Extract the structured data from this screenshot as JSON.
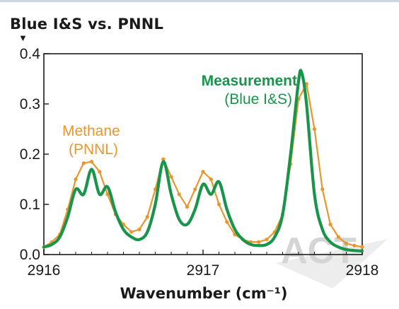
{
  "page": {
    "title": "Blue I&S vs. PNNL",
    "title_marker": "▼",
    "watermark": "ACT"
  },
  "chart_data": {
    "type": "line",
    "title": "Blue I&S vs. PNNL",
    "xlabel": "Wavenumber (cm⁻¹)",
    "ylabel": "",
    "xlim": [
      2916,
      2918
    ],
    "ylim": [
      0,
      0.4
    ],
    "x_ticks": [
      2916,
      2917,
      2918
    ],
    "x_tick_labels": [
      "2916",
      "2917",
      "2918"
    ],
    "y_ticks": [
      0.0,
      0.1,
      0.2,
      0.3,
      0.4
    ],
    "y_tick_labels": [
      "0.0",
      "0.1",
      "0.2",
      "0.3",
      "0.4"
    ],
    "grid": false,
    "annotations": [
      {
        "text": "Methane",
        "series": "Methane (PNNL)",
        "color": "#e8962e",
        "bold": false
      },
      {
        "text": "(PNNL)",
        "series": "Methane (PNNL)",
        "color": "#e8962e",
        "bold": false
      },
      {
        "text": "Measurement",
        "series": "Measurement (Blue I&S)",
        "color": "#18954b",
        "bold": true
      },
      {
        "text": "(Blue I&S)",
        "series": "Measurement (Blue I&S)",
        "color": "#18954b",
        "bold": false
      }
    ],
    "series": [
      {
        "name": "Methane (PNNL)",
        "color": "#e8962e",
        "markers": true,
        "x": [
          2916.0,
          2916.05,
          2916.1,
          2916.15,
          2916.2,
          2916.25,
          2916.3,
          2916.35,
          2916.4,
          2916.45,
          2916.5,
          2916.55,
          2916.6,
          2916.65,
          2916.7,
          2916.75,
          2916.8,
          2916.85,
          2916.9,
          2916.95,
          2917.0,
          2917.05,
          2917.1,
          2917.15,
          2917.2,
          2917.25,
          2917.3,
          2917.35,
          2917.4,
          2917.45,
          2917.5,
          2917.55,
          2917.6,
          2917.65,
          2917.7,
          2917.75,
          2917.8,
          2917.85,
          2917.9,
          2917.95,
          2918.0
        ],
        "y": [
          0.015,
          0.025,
          0.04,
          0.09,
          0.15,
          0.182,
          0.185,
          0.165,
          0.12,
          0.08,
          0.06,
          0.045,
          0.05,
          0.075,
          0.13,
          0.19,
          0.155,
          0.12,
          0.095,
          0.13,
          0.165,
          0.15,
          0.1,
          0.065,
          0.04,
          0.03,
          0.025,
          0.025,
          0.03,
          0.045,
          0.08,
          0.18,
          0.31,
          0.34,
          0.25,
          0.13,
          0.06,
          0.035,
          0.022,
          0.018,
          0.015
        ]
      },
      {
        "name": "Measurement (Blue I&S)",
        "color": "#18954b",
        "markers": false,
        "x": [
          2916.0,
          2916.05,
          2916.1,
          2916.15,
          2916.2,
          2916.25,
          2916.3,
          2916.35,
          2916.4,
          2916.45,
          2916.5,
          2916.55,
          2916.6,
          2916.65,
          2916.7,
          2916.75,
          2916.8,
          2916.85,
          2916.9,
          2916.95,
          2917.0,
          2917.05,
          2917.1,
          2917.15,
          2917.2,
          2917.25,
          2917.3,
          2917.35,
          2917.4,
          2917.45,
          2917.5,
          2917.55,
          2917.6,
          2917.62,
          2917.65,
          2917.7,
          2917.75,
          2917.8,
          2917.85,
          2917.9,
          2917.95,
          2918.0
        ],
        "y": [
          0.015,
          0.02,
          0.035,
          0.075,
          0.13,
          0.12,
          0.17,
          0.12,
          0.135,
          0.085,
          0.05,
          0.035,
          0.03,
          0.045,
          0.1,
          0.185,
          0.12,
          0.07,
          0.06,
          0.09,
          0.14,
          0.12,
          0.145,
          0.09,
          0.05,
          0.03,
          0.02,
          0.018,
          0.02,
          0.035,
          0.08,
          0.2,
          0.345,
          0.362,
          0.3,
          0.12,
          0.05,
          0.025,
          0.015,
          0.01,
          0.008,
          0.007
        ]
      }
    ]
  }
}
